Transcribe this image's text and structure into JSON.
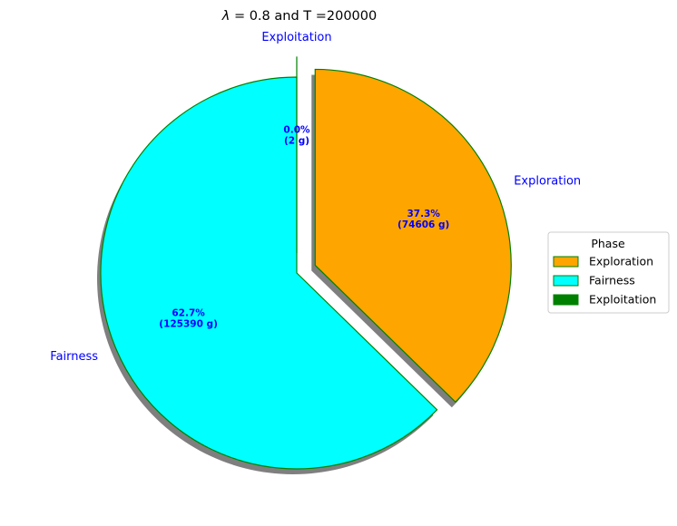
{
  "chart_data": {
    "type": "pie",
    "title_prefix": "λ",
    "title_rest": " = 0.8 and T =200000",
    "slices": [
      {
        "label": "Exploration",
        "value": 74606,
        "percent_label": "37.3%",
        "count_label": "(74606 g)",
        "color": "#ffa500",
        "explode": true
      },
      {
        "label": "Fairness",
        "value": 125390,
        "percent_label": "62.7%",
        "count_label": "(125390 g)",
        "color": "#00ffff",
        "explode": false
      },
      {
        "label": "Exploitation",
        "value": 2,
        "percent_label": "0.0%",
        "count_label": "(2 g)",
        "color": "#008000",
        "explode": true
      }
    ],
    "edge_color": "#008000",
    "label_color": "#0000ff",
    "shadow": true,
    "start": "top",
    "direction": "clockwise",
    "legend": {
      "title": "Phase",
      "placement": "right",
      "entries": [
        "Exploration",
        "Fairness",
        "Exploitation"
      ]
    }
  }
}
